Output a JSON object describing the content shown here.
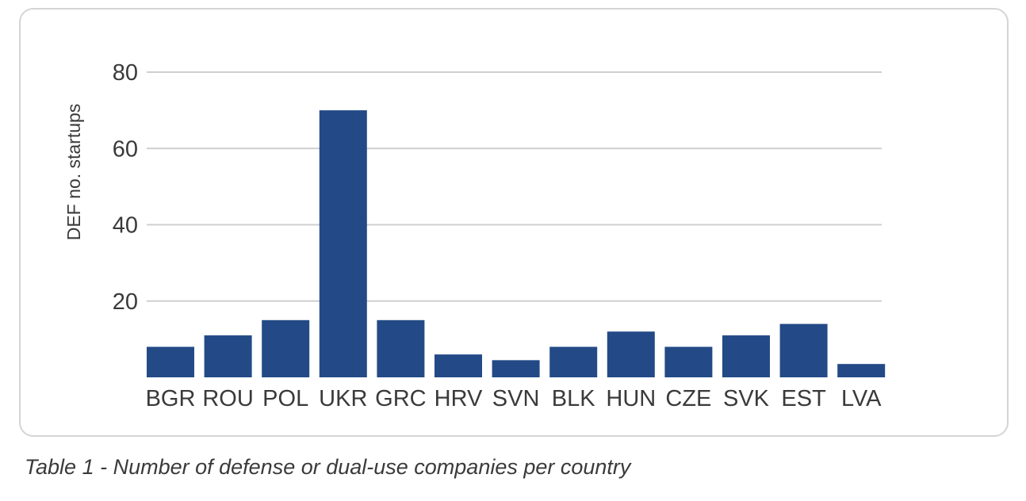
{
  "chart_data": {
    "type": "bar",
    "categories": [
      "BGR",
      "ROU",
      "POL",
      "UKR",
      "GRC",
      "HRV",
      "SVN",
      "BLK",
      "HUN",
      "CZE",
      "SVK",
      "EST",
      "LVA"
    ],
    "values": [
      8,
      11,
      15,
      70,
      15,
      6,
      4.5,
      8,
      12,
      8,
      11,
      14,
      3.5
    ],
    "ylabel": "DEF no. startups",
    "xlabel": "",
    "ylim": [
      0,
      86
    ],
    "y_ticks": [
      20,
      40,
      60,
      80
    ],
    "grid": true,
    "legend": "none",
    "bar_color": "#234a86",
    "grid_color": "#cfcfcf"
  },
  "caption": "Table 1 - Number of defense or dual-use companies per country"
}
